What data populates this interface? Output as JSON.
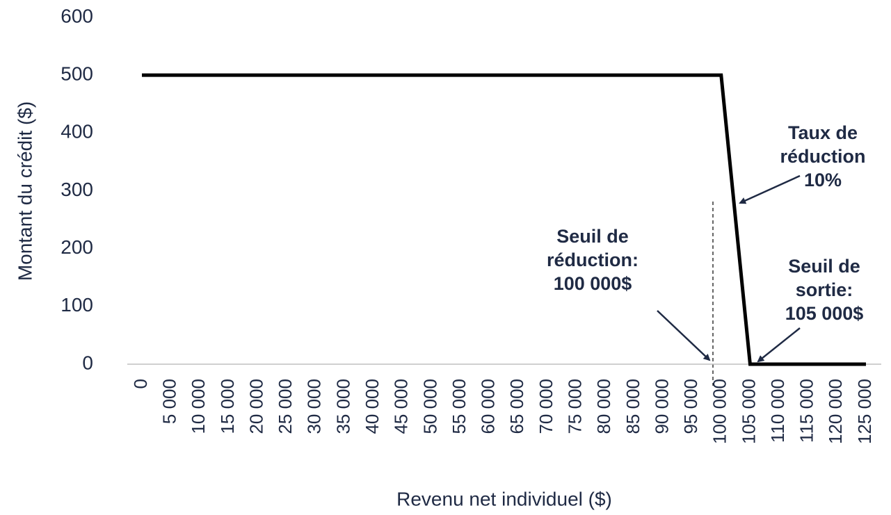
{
  "chart_data": {
    "type": "line",
    "y_label": "Montant du crédit ($)",
    "x_label": "Revenu net individuel ($)",
    "categories": [
      "0",
      "5 000",
      "10 000",
      "15 000",
      "20 000",
      "25 000",
      "30 000",
      "35 000",
      "40 000",
      "45 000",
      "50 000",
      "55 000",
      "60 000",
      "65 000",
      "70 000",
      "75 000",
      "80 000",
      "85 000",
      "90 000",
      "95 000",
      "100 000",
      "105 000",
      "110 000",
      "115 000",
      "120 000",
      "125 000"
    ],
    "series": [
      {
        "name": "Montant du crédit",
        "color": "#000000",
        "values": [
          500,
          500,
          500,
          500,
          500,
          500,
          500,
          500,
          500,
          500,
          500,
          500,
          500,
          500,
          500,
          500,
          500,
          500,
          500,
          500,
          500,
          0,
          0,
          0,
          0,
          0
        ]
      }
    ],
    "ylim": [
      0,
      600
    ],
    "yticks": [
      0,
      100,
      200,
      300,
      400,
      500,
      600
    ],
    "grid": false,
    "annotations": [
      {
        "lines": [
          "Taux de",
          "réduction",
          "10%"
        ]
      },
      {
        "lines": [
          "Seuil de",
          "réduction:",
          "100 000$"
        ]
      },
      {
        "lines": [
          "Seuil de",
          "sortie:",
          "105 000$"
        ]
      }
    ]
  }
}
